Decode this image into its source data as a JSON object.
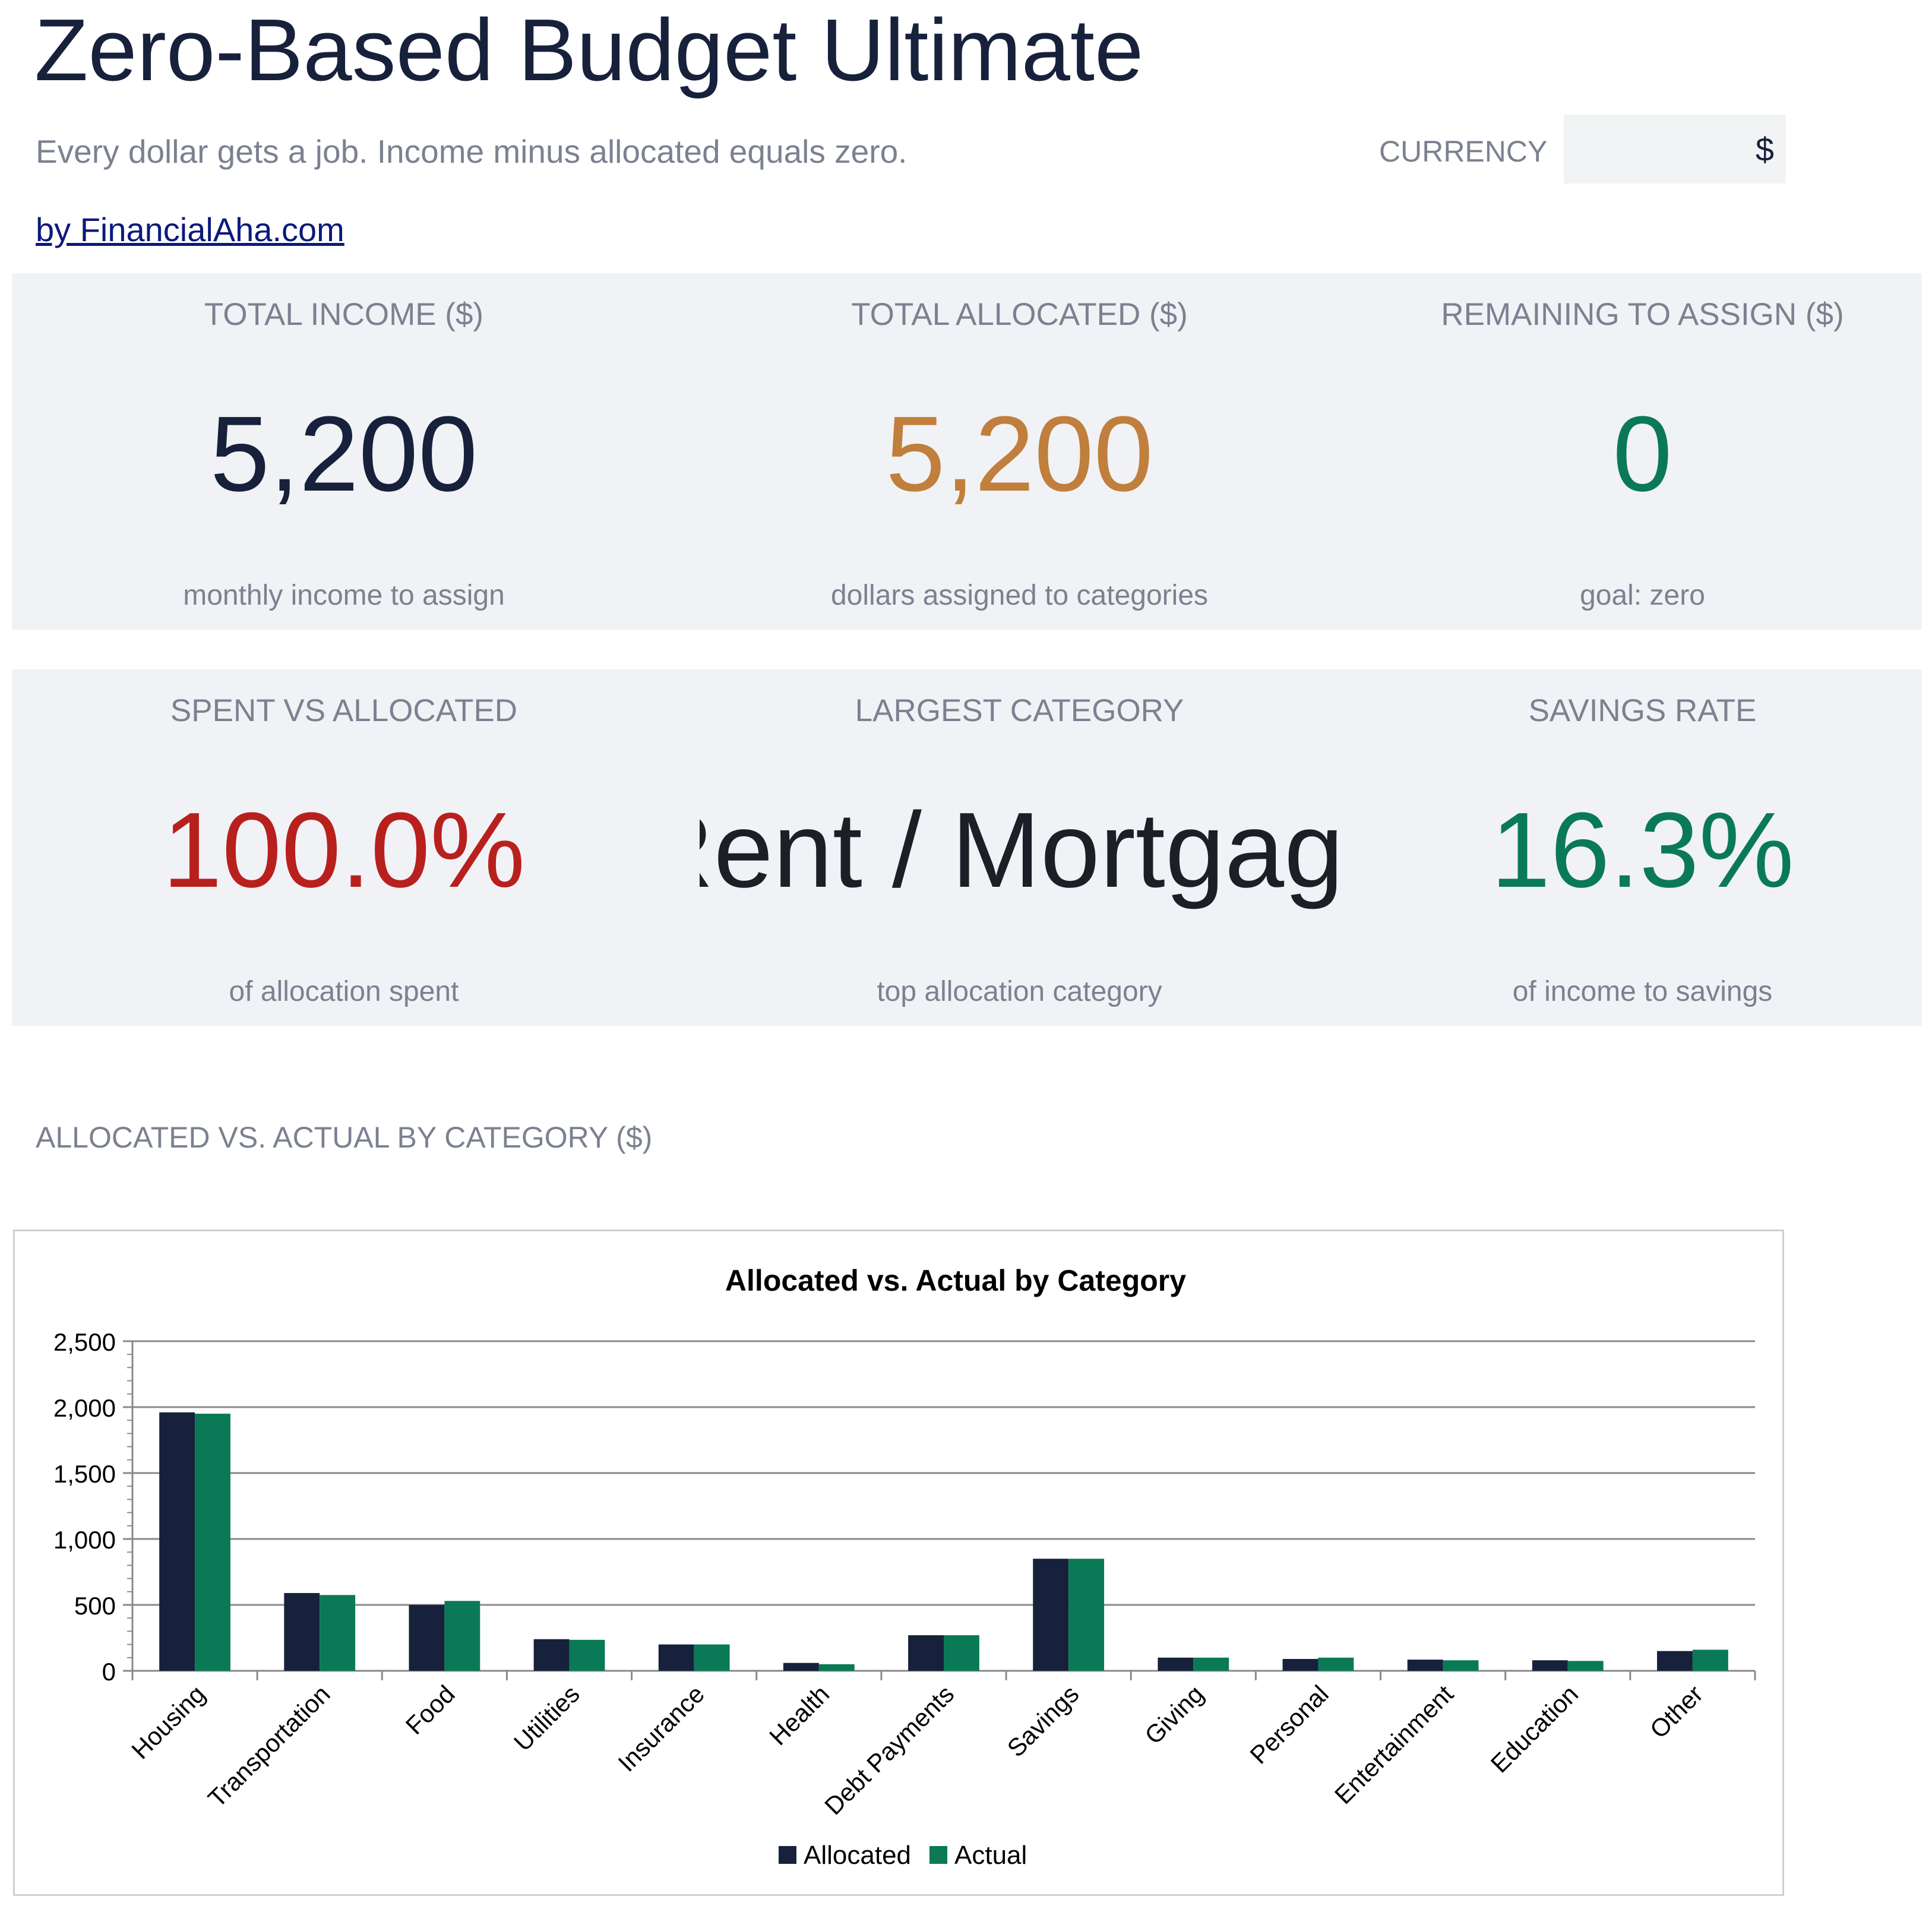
{
  "header": {
    "title": "Zero-Based Budget Ultimate",
    "subtitle": "Every dollar gets a job. Income minus allocated equals zero.",
    "byline": "by FinancialAha.com",
    "currency_label": "CURRENCY",
    "currency_value": "$"
  },
  "kpis_row1": [
    {
      "label": "TOTAL INCOME ($)",
      "value": "5,200",
      "sub": "monthly income to assign",
      "color": "#17213b"
    },
    {
      "label": "TOTAL ALLOCATED ($)",
      "value": "5,200",
      "sub": "dollars assigned to categories",
      "color": "#c07f3c"
    },
    {
      "label": "REMAINING TO ASSIGN ($)",
      "value": "0",
      "sub": "goal: zero",
      "color": "#0a7a56"
    }
  ],
  "kpis_row2": [
    {
      "label": "SPENT VS ALLOCATED",
      "value": "100.0%",
      "sub": "of allocation spent",
      "color": "#b8201e"
    },
    {
      "label": "LARGEST CATEGORY",
      "value": "Rent / Mortgage",
      "sub": "top allocation category",
      "color": "#1d1e26"
    },
    {
      "label": "SAVINGS RATE",
      "value": "16.3%",
      "sub": "of income to savings",
      "color": "#0a7a56"
    }
  ],
  "chart_section_title": "ALLOCATED VS. ACTUAL BY CATEGORY ($)",
  "chart_data": {
    "type": "bar",
    "title": "Allocated vs. Actual by Category",
    "xlabel": "",
    "ylabel": "",
    "categories": [
      "Housing",
      "Transportation",
      "Food",
      "Utilities",
      "Insurance",
      "Health",
      "Debt Payments",
      "Savings",
      "Giving",
      "Personal",
      "Entertainment",
      "Education",
      "Other"
    ],
    "series": [
      {
        "name": "Allocated",
        "color": "#17213b",
        "values": [
          1960,
          590,
          500,
          240,
          200,
          60,
          270,
          850,
          100,
          90,
          85,
          80,
          150
        ]
      },
      {
        "name": "Actual",
        "color": "#0a7a56",
        "values": [
          1950,
          575,
          530,
          235,
          200,
          50,
          270,
          850,
          100,
          100,
          80,
          75,
          160
        ]
      }
    ],
    "ylim": [
      0,
      2500
    ],
    "yticks": [
      "0",
      "500",
      "1,000",
      "1,500",
      "2,000",
      "2,500"
    ],
    "grid": true,
    "legend": "bottom"
  }
}
